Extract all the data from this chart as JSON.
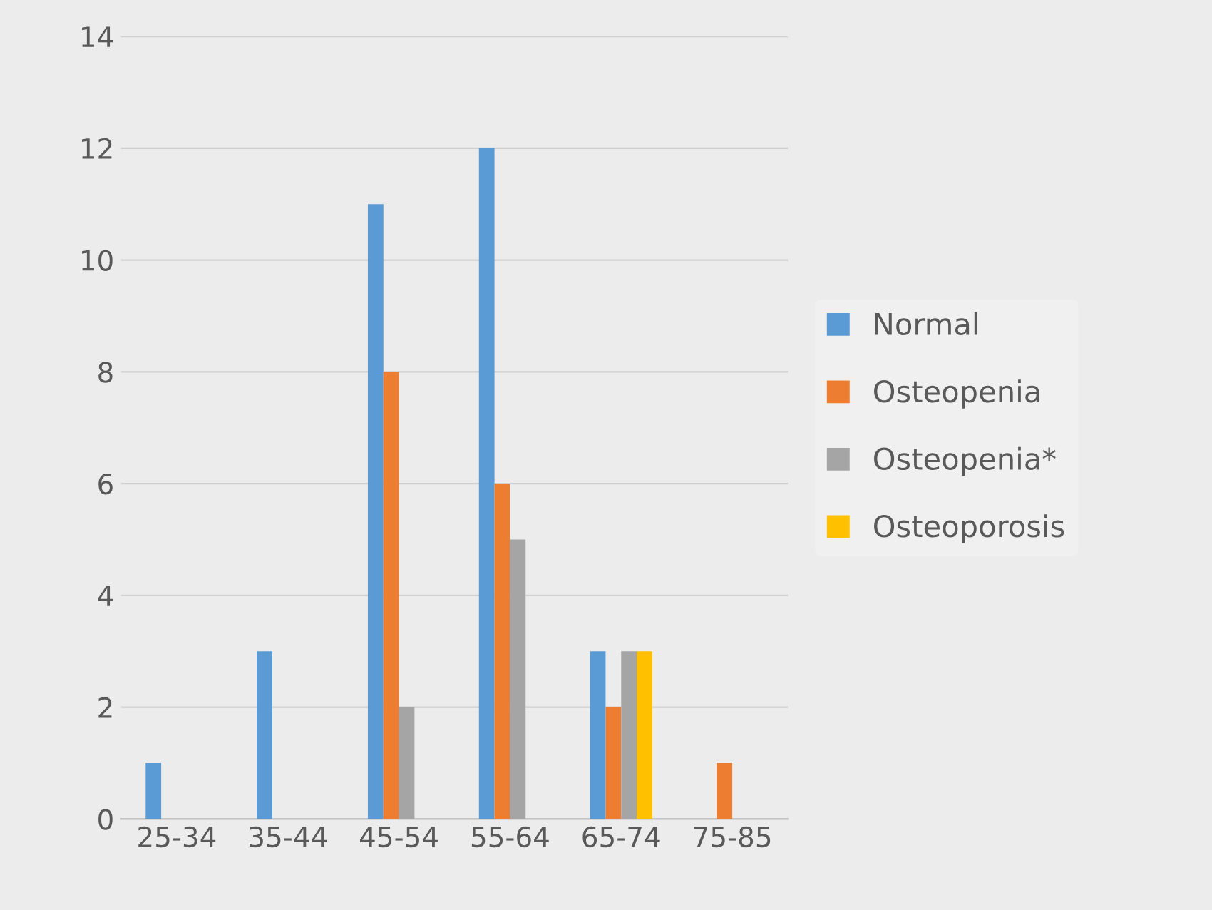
{
  "chart_data": {
    "type": "bar",
    "categories": [
      "25-34",
      "35-44",
      "45-54",
      "55-64",
      "65-74",
      "75-85"
    ],
    "series": [
      {
        "name": "Normal",
        "color": "#5b9bd5",
        "values": [
          1,
          3,
          11,
          12,
          3,
          0
        ]
      },
      {
        "name": "Osteopenia",
        "color": "#ed7d31",
        "values": [
          0,
          0,
          8,
          6,
          2,
          1
        ]
      },
      {
        "name": "Osteopenia*",
        "color": "#a5a5a5",
        "values": [
          0,
          0,
          2,
          5,
          3,
          0
        ]
      },
      {
        "name": "Osteoporosis",
        "color": "#ffc000",
        "values": [
          0,
          0,
          0,
          0,
          3,
          0
        ]
      }
    ],
    "ylim": [
      0,
      14
    ],
    "yticks": [
      0,
      2,
      4,
      6,
      8,
      10,
      12,
      14
    ],
    "grid": "y",
    "legend": "right"
  }
}
